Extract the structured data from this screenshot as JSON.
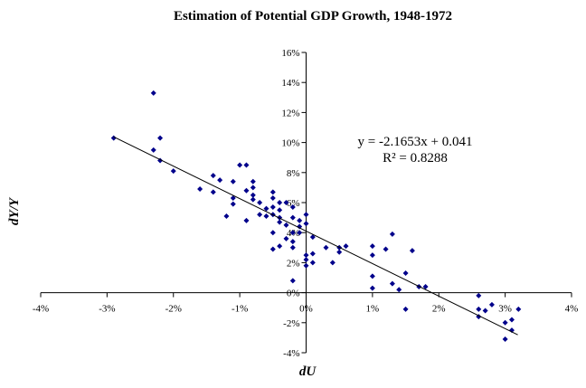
{
  "chart_data": {
    "type": "scatter",
    "title": "Estimation of Potential GDP Growth, 1948-1972",
    "xlabel": "dU",
    "ylabel": "dY/Y",
    "xlim": [
      -0.04,
      0.04
    ],
    "ylim": [
      -0.04,
      0.16
    ],
    "x_ticks": [
      -0.04,
      -0.03,
      -0.02,
      -0.01,
      0,
      0.01,
      0.02,
      0.03,
      0.04
    ],
    "x_tick_labels": [
      "-4%",
      "-3%",
      "-2%",
      "-1%",
      "0%",
      "1%",
      "2%",
      "3%",
      "4%"
    ],
    "y_ticks": [
      -0.04,
      -0.02,
      0,
      0.02,
      0.04,
      0.06,
      0.08,
      0.1,
      0.12,
      0.14,
      0.16
    ],
    "y_tick_labels": [
      "-4%",
      "-2%",
      "0%",
      "2%",
      "4%",
      "6%",
      "8%",
      "10%",
      "12%",
      "14%",
      "16%"
    ],
    "grid": false,
    "legend": "none",
    "marker_color": "#00008B",
    "trendline": {
      "slope": -2.1653,
      "intercept": 0.041,
      "x_range": [
        -0.029,
        0.0319
      ]
    },
    "annotations": {
      "equation": "y = -2.1653x + 0.041",
      "r_squared": "R² = 0.8288"
    },
    "points": [
      [
        -0.029,
        0.103
      ],
      [
        -0.023,
        0.133
      ],
      [
        -0.023,
        0.095
      ],
      [
        -0.022,
        0.103
      ],
      [
        -0.022,
        0.088
      ],
      [
        -0.02,
        0.081
      ],
      [
        -0.016,
        0.069
      ],
      [
        -0.014,
        0.078
      ],
      [
        -0.014,
        0.067
      ],
      [
        -0.013,
        0.075
      ],
      [
        -0.012,
        0.051
      ],
      [
        -0.011,
        0.074
      ],
      [
        -0.011,
        0.063
      ],
      [
        -0.011,
        0.059
      ],
      [
        -0.01,
        0.085
      ],
      [
        -0.009,
        0.085
      ],
      [
        -0.009,
        0.068
      ],
      [
        -0.009,
        0.048
      ],
      [
        -0.008,
        0.074
      ],
      [
        -0.008,
        0.07
      ],
      [
        -0.008,
        0.065
      ],
      [
        -0.008,
        0.062
      ],
      [
        -0.007,
        0.06
      ],
      [
        -0.007,
        0.052
      ],
      [
        -0.006,
        0.056
      ],
      [
        -0.006,
        0.051
      ],
      [
        -0.005,
        0.067
      ],
      [
        -0.005,
        0.063
      ],
      [
        -0.005,
        0.057
      ],
      [
        -0.005,
        0.052
      ],
      [
        -0.005,
        0.04
      ],
      [
        -0.005,
        0.029
      ],
      [
        -0.004,
        0.06
      ],
      [
        -0.004,
        0.055
      ],
      [
        -0.004,
        0.05
      ],
      [
        -0.004,
        0.047
      ],
      [
        -0.004,
        0.031
      ],
      [
        -0.003,
        0.06
      ],
      [
        -0.003,
        0.045
      ],
      [
        -0.003,
        0.036
      ],
      [
        -0.002,
        0.057
      ],
      [
        -0.002,
        0.05
      ],
      [
        -0.002,
        0.04
      ],
      [
        -0.002,
        0.034
      ],
      [
        -0.002,
        0.03
      ],
      [
        -0.002,
        0.008
      ],
      [
        -0.001,
        0.048
      ],
      [
        -0.001,
        0.044
      ],
      [
        -0.001,
        0.04
      ],
      [
        0.0,
        0.052
      ],
      [
        0.0,
        0.046
      ],
      [
        0.0,
        0.025
      ],
      [
        0.0,
        0.022
      ],
      [
        0.0,
        0.018
      ],
      [
        0.001,
        0.037
      ],
      [
        0.001,
        0.026
      ],
      [
        0.001,
        0.02
      ],
      [
        0.003,
        0.03
      ],
      [
        0.004,
        0.02
      ],
      [
        0.005,
        0.03
      ],
      [
        0.005,
        0.027
      ],
      [
        0.006,
        0.031
      ],
      [
        0.01,
        0.031
      ],
      [
        0.01,
        0.025
      ],
      [
        0.01,
        0.011
      ],
      [
        0.01,
        0.003
      ],
      [
        0.012,
        0.029
      ],
      [
        0.013,
        0.039
      ],
      [
        0.013,
        0.006
      ],
      [
        0.014,
        0.002
      ],
      [
        0.015,
        0.013
      ],
      [
        0.015,
        -0.011
      ],
      [
        0.016,
        0.028
      ],
      [
        0.017,
        0.004
      ],
      [
        0.018,
        0.004
      ],
      [
        0.026,
        -0.002
      ],
      [
        0.026,
        -0.011
      ],
      [
        0.026,
        -0.016
      ],
      [
        0.027,
        -0.012
      ],
      [
        0.028,
        -0.008
      ],
      [
        0.03,
        -0.02
      ],
      [
        0.03,
        -0.031
      ],
      [
        0.031,
        -0.018
      ],
      [
        0.031,
        -0.025
      ],
      [
        0.032,
        -0.011
      ]
    ]
  }
}
